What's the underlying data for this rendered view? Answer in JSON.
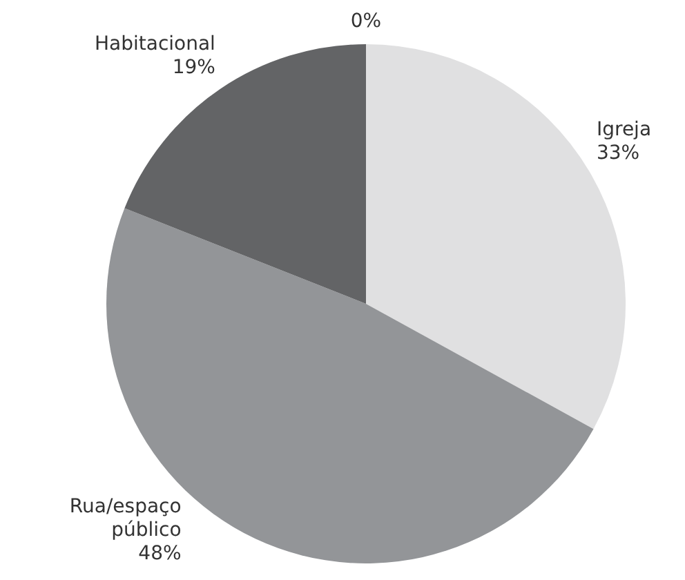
{
  "chart_data": {
    "type": "pie",
    "categories": [
      null,
      "Igreja",
      "Rua/espaço público",
      "Habitacional"
    ],
    "values": [
      0,
      33,
      48,
      19
    ],
    "value_labels": [
      "0%",
      "33%",
      "48%",
      "19%"
    ],
    "colors": [
      "#bcbec0",
      "#e0e0e1",
      "#939598",
      "#636466"
    ],
    "legend": false
  }
}
